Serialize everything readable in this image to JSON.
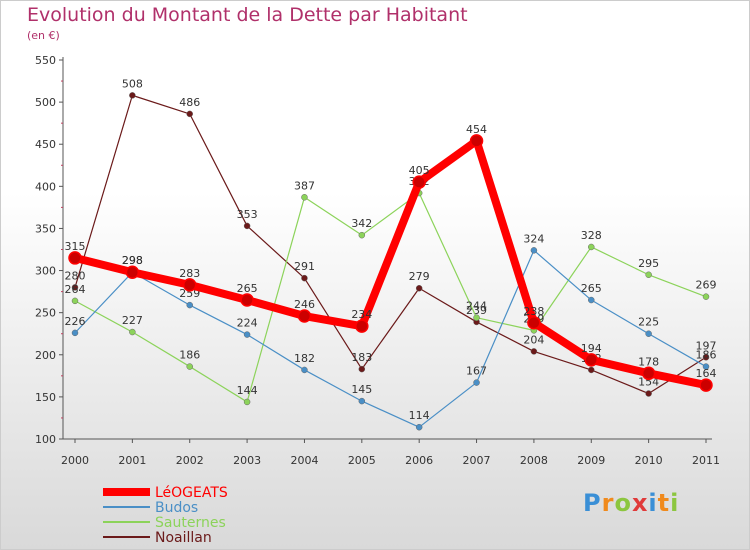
{
  "title": "Evolution du Montant de la Dette par Habitant",
  "subtitle": "(en €)",
  "logo": {
    "text": "Proxiti",
    "colors": [
      "#3a8fd6",
      "#f08a1c",
      "#8cc63f",
      "#e03a3a",
      "#3a8fd6",
      "#f08a1c",
      "#8cc63f"
    ]
  },
  "chart_data": {
    "type": "line",
    "x": [
      "2000",
      "2001",
      "2002",
      "2003",
      "2004",
      "2005",
      "2006",
      "2007",
      "2008",
      "2009",
      "2010",
      "2011"
    ],
    "ylim": [
      100,
      550
    ],
    "yticks": [
      100,
      150,
      200,
      250,
      300,
      350,
      400,
      450,
      500,
      550
    ],
    "grid": false,
    "legend": "bottom-left",
    "series": [
      {
        "name": "Noaillan",
        "color": "#6b1a1a",
        "values": [
          280,
          508,
          486,
          353,
          291,
          183,
          279,
          239,
          204,
          182,
          154,
          197
        ]
      },
      {
        "name": "Sauternes",
        "color": "#8cd35a",
        "values": [
          264,
          227,
          186,
          144,
          387,
          342,
          392,
          244,
          229,
          328,
          295,
          269
        ]
      },
      {
        "name": "Budos",
        "color": "#4a8fc6",
        "values": [
          226,
          298,
          259,
          224,
          182,
          145,
          114,
          167,
          324,
          265,
          225,
          186
        ]
      },
      {
        "name": "LéOGEATS",
        "color": "#ff0000",
        "values": [
          315,
          298,
          283,
          265,
          246,
          234,
          405,
          454,
          238,
          194,
          178,
          164
        ]
      }
    ]
  }
}
